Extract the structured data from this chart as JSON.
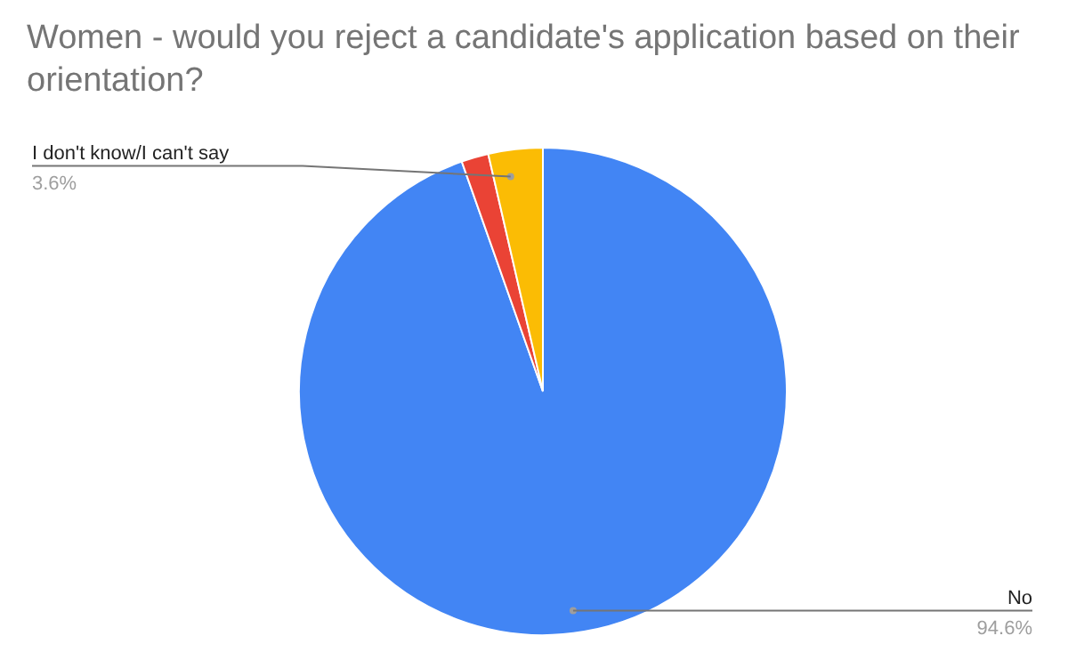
{
  "chart_data": {
    "type": "pie",
    "title": "Women - would you reject a candidate's application based on their orientation?",
    "categories": [
      "No",
      null,
      "I don't know/I can't say"
    ],
    "values": [
      94.6,
      1.8,
      3.6
    ],
    "value_labels": [
      "94.6%",
      null,
      "3.6%"
    ],
    "colors": [
      "#4285f4",
      "#ea4335",
      "#fbbc04"
    ],
    "legend": false
  }
}
